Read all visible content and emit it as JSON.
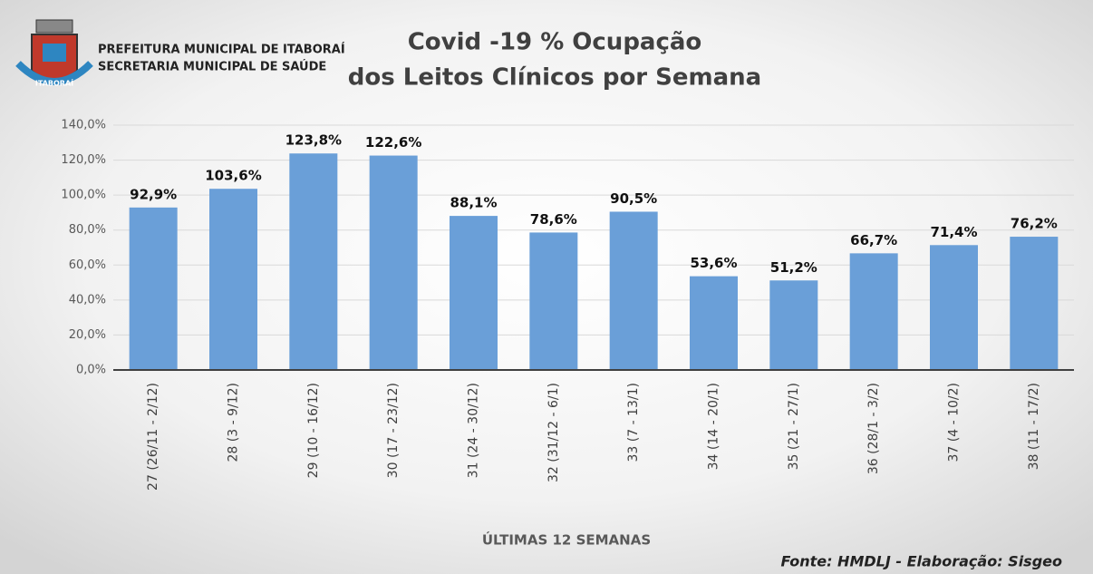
{
  "chart_data": {
    "type": "bar",
    "header": [
      "PREFEITURA MUNICIPAL DE ITABORAÍ",
      "SECRETARIA MUNICIPAL DE SAÚDE"
    ],
    "logo_text": "ITABORAÍ",
    "title": [
      "Covid -19 % Ocupação",
      "dos Leitos Clínicos por Semana"
    ],
    "categories": [
      "27 (26/11 - 2/12)",
      "28 (3 - 9/12)",
      "29 (10 - 16/12)",
      "30 (17 - 23/12)",
      "31 (24 - 30/12)",
      "32 (31/12 - 6/1)",
      "33 (7 - 13/1)",
      "34 (14 - 20/1)",
      "35 (21 - 27/1)",
      "36 (28/1 - 3/2)",
      "37 (4 - 10/2)",
      "38 (11 - 17/2)"
    ],
    "values": [
      92.9,
      103.6,
      123.8,
      122.6,
      88.1,
      78.6,
      90.5,
      53.6,
      51.2,
      66.7,
      71.4,
      76.2
    ],
    "value_labels": [
      "92,9%",
      "103,6%",
      "123,8%",
      "122,6%",
      "88,1%",
      "78,6%",
      "90,5%",
      "53,6%",
      "51,2%",
      "66,7%",
      "71,4%",
      "76,2%"
    ],
    "color": "#6a9fd8",
    "ylim": [
      0,
      140
    ],
    "yticks": [
      {
        "value": 0,
        "label": "0,0%"
      },
      {
        "value": 20,
        "label": "20,0%"
      },
      {
        "value": 40,
        "label": "40,0%"
      },
      {
        "value": 60,
        "label": "60,0%"
      },
      {
        "value": 80,
        "label": "80,0%"
      },
      {
        "value": 100,
        "label": "100,0%"
      },
      {
        "value": 120,
        "label": "120,0%"
      },
      {
        "value": 140,
        "label": "140,0%"
      }
    ],
    "grid": true,
    "xlabel": "ÚLTIMAS 12 SEMANAS",
    "source": "Fonte: HMDLJ - Elaboração: Sisgeo"
  }
}
